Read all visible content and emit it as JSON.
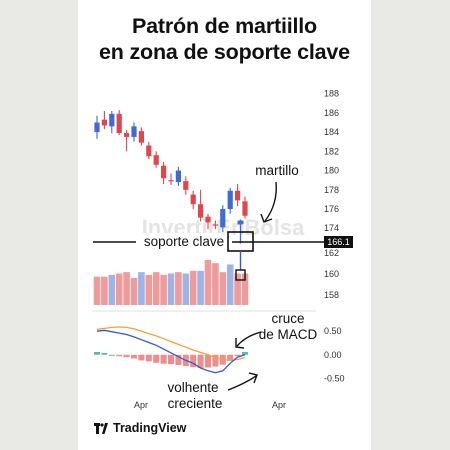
{
  "title": {
    "line1": "Patrón de martiillo",
    "line2": "en zona de soporte clave"
  },
  "watermark": "InvertirEnBolsa",
  "brand": {
    "name": "TradingView",
    "icon": "tradingview-logo-icon"
  },
  "colors": {
    "up": "#3f6bd6",
    "down": "#e0474c",
    "vol_up": "#9eb4e6",
    "vol_down": "#ef9b9b",
    "macd": "#2f5bd1",
    "signal": "#f0a33a",
    "hist_pos": "#5fb8b0",
    "hist_neg": "#ef8d8d"
  },
  "chart_data": [
    {
      "type": "candlestick",
      "y_ticks": [
        188,
        186,
        184,
        182,
        180,
        178,
        176,
        174
      ],
      "lower_ticks": [
        162,
        160,
        158
      ],
      "ylim": [
        173.4,
        188.8
      ],
      "candles": [
        {
          "o": 184.0,
          "h": 185.7,
          "l": 183.3,
          "c": 185.0
        },
        {
          "o": 185.3,
          "h": 186.2,
          "l": 184.3,
          "c": 184.7
        },
        {
          "o": 184.6,
          "h": 186.2,
          "l": 183.9,
          "c": 185.9
        },
        {
          "o": 185.9,
          "h": 186.3,
          "l": 183.7,
          "c": 183.9
        },
        {
          "o": 183.9,
          "h": 184.2,
          "l": 182.0,
          "c": 183.5
        },
        {
          "o": 183.5,
          "h": 185.0,
          "l": 183.0,
          "c": 184.6
        },
        {
          "o": 184.1,
          "h": 184.5,
          "l": 182.6,
          "c": 182.9
        },
        {
          "o": 182.6,
          "h": 183.0,
          "l": 181.2,
          "c": 181.5
        },
        {
          "o": 181.6,
          "h": 182.0,
          "l": 180.3,
          "c": 180.6
        },
        {
          "o": 180.5,
          "h": 180.9,
          "l": 178.6,
          "c": 179.2
        },
        {
          "o": 179.0,
          "h": 179.7,
          "l": 178.5,
          "c": 178.9
        },
        {
          "o": 178.8,
          "h": 180.4,
          "l": 178.4,
          "c": 180.0
        },
        {
          "o": 178.9,
          "h": 179.4,
          "l": 177.5,
          "c": 178.0
        },
        {
          "o": 177.5,
          "h": 177.9,
          "l": 176.0,
          "c": 176.5
        },
        {
          "o": 176.5,
          "h": 178.0,
          "l": 174.7,
          "c": 175.1
        },
        {
          "o": 175.2,
          "h": 175.5,
          "l": 173.9,
          "c": 174.6
        },
        {
          "o": 174.4,
          "h": 174.8,
          "l": 173.9,
          "c": 174.3
        },
        {
          "o": 174.1,
          "h": 176.4,
          "l": 173.6,
          "c": 176.0
        },
        {
          "o": 176.0,
          "h": 178.2,
          "l": 175.5,
          "c": 177.9
        },
        {
          "o": 177.9,
          "h": 178.6,
          "l": 176.3,
          "c": 176.9
        },
        {
          "o": 176.8,
          "h": 177.3,
          "l": 175.0,
          "c": 175.3
        }
      ],
      "hammer": {
        "o": 174.4,
        "h": 174.9,
        "l": 172.4,
        "c": 174.8
      },
      "support": {
        "label": "soporte clave",
        "price_tag": "166.1"
      },
      "annotation": "martillo"
    },
    {
      "type": "bar",
      "name": "volume",
      "values": [
        0.63,
        0.63,
        0.67,
        0.7,
        0.73,
        0.6,
        0.73,
        0.67,
        0.73,
        0.67,
        0.7,
        0.73,
        0.7,
        0.76,
        0.76,
        1.0,
        0.93,
        0.73,
        0.9,
        0.7,
        0.7
      ],
      "colors": [
        "down",
        "down",
        "up",
        "down",
        "down",
        "down",
        "up",
        "down",
        "down",
        "down",
        "up",
        "down",
        "up",
        "down",
        "up",
        "down",
        "down",
        "down",
        "up",
        "down",
        "down"
      ]
    },
    {
      "type": "line",
      "name": "macd",
      "y_ticks": [
        "0.50",
        "0.00",
        "-0.50"
      ],
      "ylim": [
        -0.62,
        0.78
      ],
      "x_ticks": [
        "Apr",
        "Apr"
      ],
      "macd": [
        0.5,
        0.52,
        0.49,
        0.46,
        0.43,
        0.38,
        0.32,
        0.26,
        0.2,
        0.12,
        0.04,
        -0.04,
        -0.12,
        -0.18,
        -0.28,
        -0.34,
        -0.38,
        -0.34,
        -0.18,
        -0.05,
        0.0
      ],
      "signal": [
        0.54,
        0.56,
        0.58,
        0.59,
        0.58,
        0.55,
        0.5,
        0.45,
        0.4,
        0.34,
        0.28,
        0.22,
        0.16,
        0.1,
        0.05,
        0.0,
        -0.06,
        -0.1,
        -0.12,
        -0.1,
        -0.06
      ],
      "hist": [
        0.06,
        0.04,
        0.0,
        -0.03,
        -0.05,
        -0.08,
        -0.12,
        -0.14,
        -0.17,
        -0.19,
        -0.2,
        -0.22,
        -0.24,
        -0.26,
        -0.28,
        -0.27,
        -0.25,
        -0.21,
        -0.13,
        -0.03,
        0.06
      ],
      "annotations": {
        "cross_line1": "cruce",
        "cross_line2": "de MACD",
        "vol_line1": "volhente",
        "vol_line2": "creciente"
      }
    }
  ]
}
